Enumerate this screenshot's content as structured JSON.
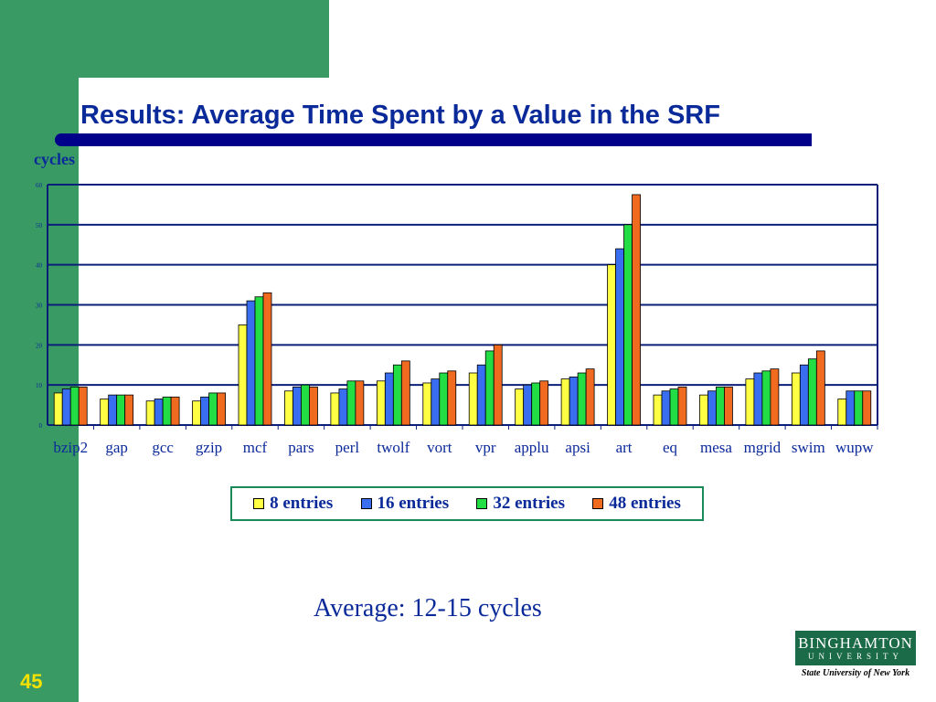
{
  "slide": {
    "title": "Results: Average Time Spent by a Value in the SRF",
    "number": "45",
    "average_note": "Average:  12-15 cycles",
    "logo": {
      "name_top": "BINGHAMTON",
      "name_bottom": "UNIVERSITY",
      "subtitle": "State University of New York"
    }
  },
  "colors": {
    "green": "#3a9a64",
    "title_blue": "#0b2a9a",
    "title_bar": "#00008b",
    "slide_number": "#f5e100"
  },
  "chart_data": {
    "type": "bar",
    "ylabel": "cycles",
    "ylim": [
      0,
      60
    ],
    "yticks": [
      0,
      10,
      20,
      30,
      40,
      50,
      60
    ],
    "grid": true,
    "legend_position": "bottom",
    "categories": [
      "bzip2",
      "gap",
      "gcc",
      "gzip",
      "mcf",
      "pars",
      "perl",
      "twolf",
      "vort",
      "vpr",
      "applu",
      "apsi",
      "art",
      "eq",
      "mesa",
      "mgrid",
      "swim",
      "wupw"
    ],
    "series": [
      {
        "name": "8 entries",
        "color": "#ffff44",
        "values": [
          8,
          6.5,
          6,
          6,
          25,
          8.5,
          8,
          11,
          10.5,
          13,
          9,
          11.5,
          40,
          7.5,
          7.5,
          11.5,
          13,
          6.5
        ]
      },
      {
        "name": "16 entries",
        "color": "#3a6ef0",
        "values": [
          9,
          7.5,
          6.5,
          7,
          31,
          9.5,
          9,
          13,
          11.5,
          15,
          10,
          12,
          44,
          8.5,
          8.5,
          13,
          15,
          8.5
        ]
      },
      {
        "name": "32 entries",
        "color": "#22dd44",
        "values": [
          9.5,
          7.5,
          7,
          8,
          32,
          10,
          11,
          15,
          13,
          18.5,
          10.5,
          13,
          50,
          9,
          9.5,
          13.5,
          16.5,
          8.5
        ]
      },
      {
        "name": "48 entries",
        "color": "#f06a20",
        "values": [
          9.5,
          7.5,
          7,
          8,
          33,
          9.5,
          11,
          16,
          13.5,
          20,
          11,
          14,
          57.5,
          9.5,
          9.5,
          14,
          18.5,
          8.5
        ]
      }
    ]
  }
}
